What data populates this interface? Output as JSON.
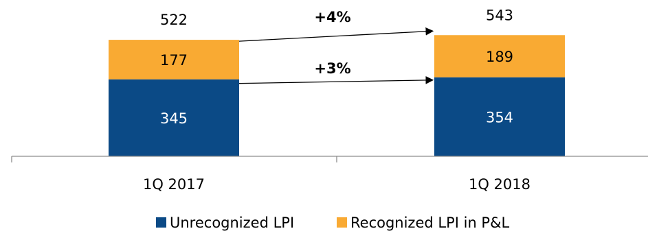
{
  "chart_data": {
    "type": "bar",
    "stacked": true,
    "categories": [
      "1Q 2017",
      "1Q 2018"
    ],
    "series": [
      {
        "name": "Unrecognized LPI",
        "values": [
          345,
          354
        ],
        "color": "#0b4a86"
      },
      {
        "name": "Recognized LPI in P&L",
        "values": [
          177,
          189
        ],
        "color": "#f9aa33"
      }
    ],
    "totals": [
      522,
      543
    ],
    "changes": [
      {
        "label": "+4%",
        "applies_to": "total"
      },
      {
        "label": "+3%",
        "applies_to": "Unrecognized LPI"
      }
    ],
    "ylim": [
      0,
      600
    ],
    "grid": false,
    "legend_position": "bottom",
    "text_colors": {
      "inside_orange": "#000000",
      "inside_blue": "#ffffff"
    }
  }
}
